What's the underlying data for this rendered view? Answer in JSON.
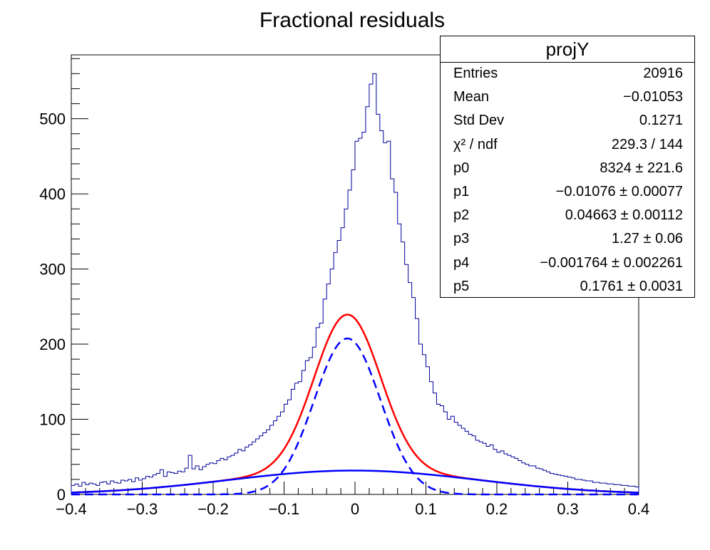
{
  "chart_data": {
    "type": "histogram",
    "title": "Fractional residuals",
    "xlabel": "",
    "ylabel": "",
    "xlim": [
      -0.4,
      0.4
    ],
    "ylim": [
      0,
      585
    ],
    "x_ticks": [
      "−0.4",
      "−0.3",
      "−0.2",
      "−0.1",
      "0",
      "0.1",
      "0.2",
      "0.3",
      "0.4"
    ],
    "x_tick_values": [
      -0.4,
      -0.3,
      -0.2,
      -0.1,
      0,
      0.1,
      0.2,
      0.3,
      0.4
    ],
    "y_ticks": [
      "0",
      "100",
      "200",
      "300",
      "400",
      "500"
    ],
    "y_tick_values": [
      0,
      100,
      200,
      300,
      400,
      500
    ],
    "bin_width": 0.005,
    "bin_low_edge": -0.4,
    "histogram_values": [
      12,
      14,
      11,
      16,
      13,
      15,
      14,
      12,
      16,
      17,
      14,
      18,
      16,
      15,
      19,
      18,
      20,
      17,
      22,
      19,
      21,
      24,
      23,
      26,
      28,
      33,
      24,
      30,
      29,
      28,
      31,
      30,
      35,
      52,
      34,
      38,
      33,
      37,
      40,
      42,
      41,
      45,
      48,
      46,
      50,
      52,
      55,
      60,
      58,
      63,
      66,
      70,
      74,
      78,
      82,
      86,
      92,
      98,
      104,
      110,
      120,
      126,
      140,
      148,
      150,
      165,
      178,
      182,
      196,
      222,
      228,
      260,
      280,
      300,
      322,
      338,
      355,
      380,
      405,
      432,
      470,
      474,
      482,
      516,
      546,
      560,
      506,
      484,
      468,
      470,
      420,
      402,
      360,
      336,
      306,
      282,
      262,
      234,
      200,
      186,
      170,
      150,
      135,
      120,
      118,
      110,
      100,
      104,
      96,
      92,
      88,
      84,
      80,
      78,
      72,
      70,
      68,
      64,
      66,
      60,
      56,
      58,
      54,
      52,
      50,
      48,
      45,
      42,
      40,
      38,
      38,
      35,
      34,
      32,
      30,
      28,
      27,
      26,
      25,
      24,
      23,
      22,
      20,
      20,
      19,
      18,
      18,
      16,
      16,
      15,
      15,
      14,
      14,
      13,
      13,
      12,
      12,
      11,
      11,
      10
    ],
    "series": [
      {
        "name": "",
        "style": "solid",
        "color": "#ff0000",
        "role": "total fit"
      },
      {
        "name": "",
        "style": "dashed",
        "color": "#0000ff",
        "role": "narrow gaussian"
      },
      {
        "name": "",
        "style": "solid",
        "color": "#0000ff",
        "role": "wide gaussian"
      }
    ],
    "fit_params": {
      "p0": 8324,
      "p1": -0.01076,
      "p2": 0.04663,
      "p3": 1.27,
      "p4": -0.001764,
      "p5": 0.1761
    },
    "histogram_color": "#000099"
  },
  "stats": {
    "title": "projY",
    "rows": [
      {
        "key": "Entries",
        "value": "20916"
      },
      {
        "key": "Mean",
        "value": "−0.01053"
      },
      {
        "key": "Std Dev",
        "value": "0.1271"
      },
      {
        "key": "χ² / ndf",
        "value": "229.3 / 144"
      },
      {
        "key": "p0",
        "value": "8324 ± 221.6"
      },
      {
        "key": "p1",
        "value": "−0.01076 ± 0.00077"
      },
      {
        "key": "p2",
        "value": "0.04663 ± 0.00112"
      },
      {
        "key": "p3",
        "value": "1.27 ± 0.06"
      },
      {
        "key": "p4",
        "value": "−0.001764 ± 0.002261"
      },
      {
        "key": "p5",
        "value": "0.1761 ± 0.0031"
      }
    ]
  }
}
